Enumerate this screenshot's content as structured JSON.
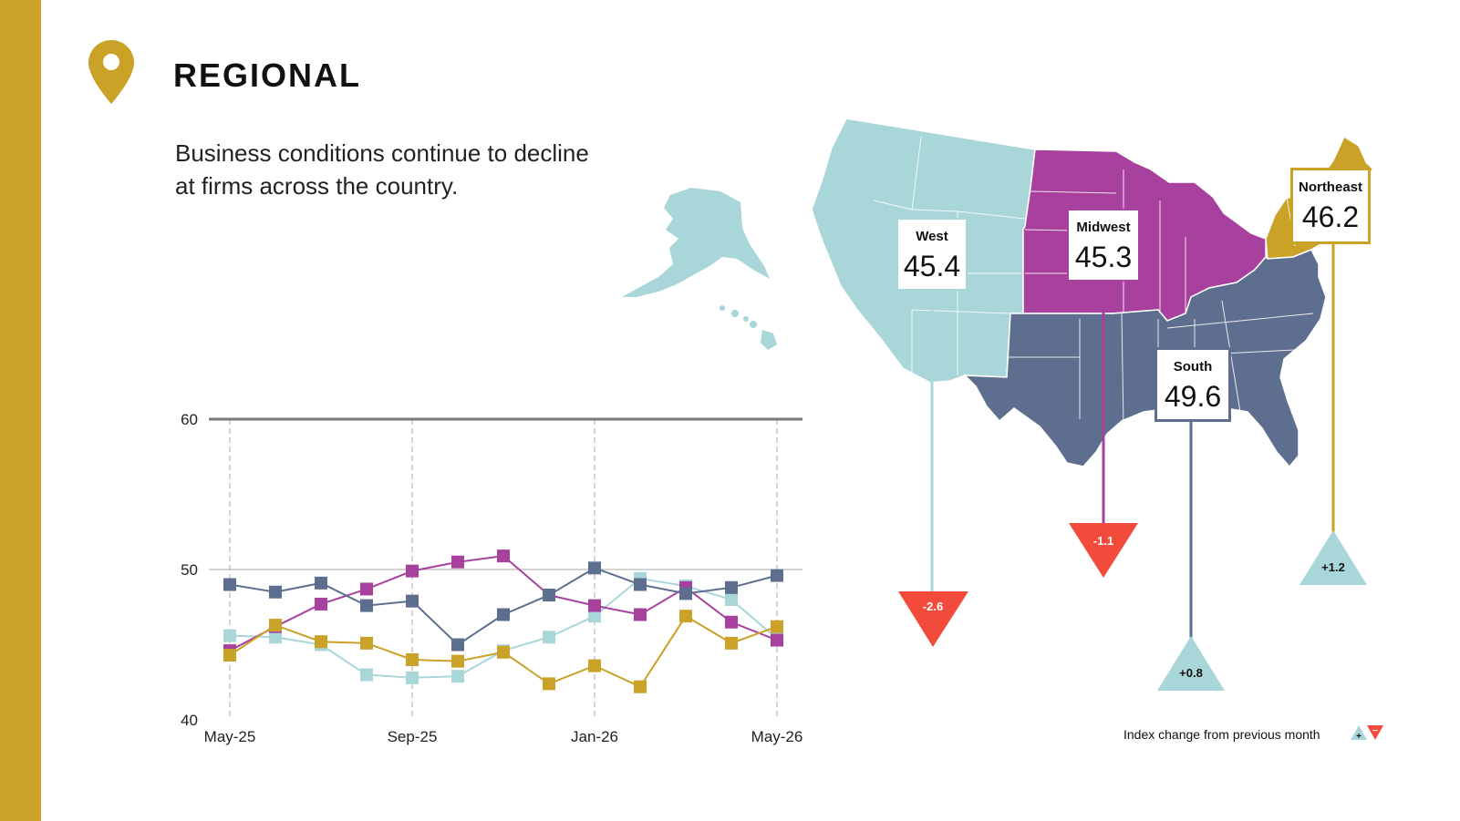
{
  "header": {
    "title": "REGIONAL",
    "subtitle": "Business conditions continue to decline at firms across the country."
  },
  "colors": {
    "accent": "#C9A227",
    "west": "#A9D6D9",
    "midwest": "#A8419E",
    "south": "#5E6E8E",
    "northeast": "#C9A227",
    "negative": "#F24B3B",
    "positive": "#A9D6D9"
  },
  "regions": [
    {
      "name": "West",
      "value": "45.4",
      "change": "-2.6",
      "direction": "down"
    },
    {
      "name": "Midwest",
      "value": "45.3",
      "change": "-1.1",
      "direction": "down"
    },
    {
      "name": "South",
      "value": "49.6",
      "change": "+0.8",
      "direction": "up"
    },
    {
      "name": "Northeast",
      "value": "46.2",
      "change": "+1.2",
      "direction": "up"
    }
  ],
  "legend": {
    "text": "Index change from previous month",
    "plus": "+",
    "minus": "−"
  },
  "chart_data": {
    "type": "line",
    "x": [
      "May-25",
      "Jun-25",
      "Jul-25",
      "Aug-25",
      "Sep-25",
      "Oct-25",
      "Nov-25",
      "Dec-25",
      "Jan-26",
      "Feb-26",
      "Mar-26",
      "Apr-26",
      "May-26"
    ],
    "x_tick_labels": [
      "May-25",
      "Sep-25",
      "Jan-26",
      "May-26"
    ],
    "ylim": [
      40,
      60
    ],
    "y_ticks": [
      40,
      50,
      60
    ],
    "grid": "vertical dashed at labeled months",
    "series": [
      {
        "key": "west",
        "color": "#A9D6D9",
        "values": [
          45.6,
          45.5,
          45.0,
          43.0,
          42.8,
          42.9,
          44.6,
          45.5,
          46.9,
          49.4,
          48.9,
          48.0,
          45.4
        ]
      },
      {
        "key": "midwest",
        "color": "#A8419E",
        "values": [
          44.6,
          46.2,
          47.7,
          48.7,
          49.9,
          50.5,
          50.9,
          48.3,
          47.6,
          47.0,
          48.8,
          46.5,
          45.3
        ]
      },
      {
        "key": "south",
        "color": "#5E6E8E",
        "values": [
          49.0,
          48.5,
          49.1,
          47.6,
          47.9,
          45.0,
          47.0,
          48.3,
          50.1,
          49.0,
          48.4,
          48.8,
          49.6
        ]
      },
      {
        "key": "northeast",
        "color": "#C9A227",
        "values": [
          44.3,
          46.3,
          45.2,
          45.1,
          44.0,
          43.9,
          44.5,
          42.4,
          43.6,
          42.2,
          46.9,
          45.1,
          46.2
        ]
      }
    ]
  }
}
